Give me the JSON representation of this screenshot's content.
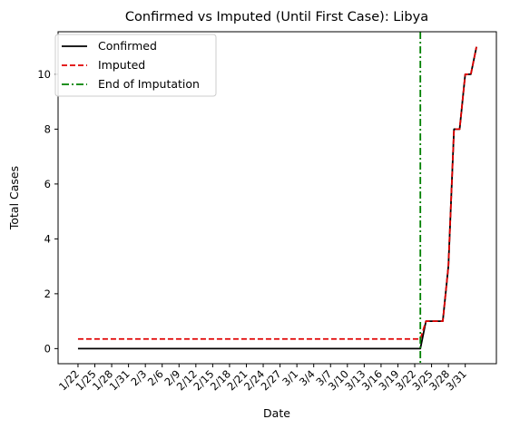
{
  "chart_data": {
    "type": "line",
    "title": "Confirmed vs Imputed (Until First Case): Libya",
    "xlabel": "Date",
    "ylabel": "Total Cases",
    "ylim": [
      -0.55,
      11.55
    ],
    "yticks": [
      0,
      2,
      4,
      6,
      8,
      10
    ],
    "xtick_labels": [
      "1/22",
      "1/25",
      "1/28",
      "1/31",
      "2/3",
      "2/6",
      "2/9",
      "2/12",
      "2/15",
      "2/18",
      "2/21",
      "2/24",
      "2/27",
      "3/1",
      "3/4",
      "3/7",
      "3/10",
      "3/13",
      "3/16",
      "3/19",
      "3/22",
      "3/25",
      "3/28",
      "3/31"
    ],
    "dates": [
      "1/22",
      "1/23",
      "1/24",
      "1/25",
      "1/26",
      "1/27",
      "1/28",
      "1/29",
      "1/30",
      "1/31",
      "2/1",
      "2/2",
      "2/3",
      "2/4",
      "2/5",
      "2/6",
      "2/7",
      "2/8",
      "2/9",
      "2/10",
      "2/11",
      "2/12",
      "2/13",
      "2/14",
      "2/15",
      "2/16",
      "2/17",
      "2/18",
      "2/19",
      "2/20",
      "2/21",
      "2/22",
      "2/23",
      "2/24",
      "2/25",
      "2/26",
      "2/27",
      "2/28",
      "2/29",
      "3/1",
      "3/2",
      "3/3",
      "3/4",
      "3/5",
      "3/6",
      "3/7",
      "3/8",
      "3/9",
      "3/10",
      "3/11",
      "3/12",
      "3/13",
      "3/14",
      "3/15",
      "3/16",
      "3/17",
      "3/18",
      "3/19",
      "3/20",
      "3/21",
      "3/22",
      "3/23",
      "3/24",
      "3/25",
      "3/26",
      "3/27",
      "3/28",
      "3/29",
      "3/30",
      "3/31",
      "4/1",
      "4/2"
    ],
    "series": [
      {
        "name": "Confirmed",
        "color": "#000000",
        "style": "solid",
        "values": [
          0,
          0,
          0,
          0,
          0,
          0,
          0,
          0,
          0,
          0,
          0,
          0,
          0,
          0,
          0,
          0,
          0,
          0,
          0,
          0,
          0,
          0,
          0,
          0,
          0,
          0,
          0,
          0,
          0,
          0,
          0,
          0,
          0,
          0,
          0,
          0,
          0,
          0,
          0,
          0,
          0,
          0,
          0,
          0,
          0,
          0,
          0,
          0,
          0,
          0,
          0,
          0,
          0,
          0,
          0,
          0,
          0,
          0,
          0,
          0,
          0,
          0,
          1,
          1,
          1,
          1,
          3,
          8,
          8,
          10,
          10,
          11
        ]
      },
      {
        "name": "Imputed",
        "color": "#e00000",
        "style": "dashed",
        "values": [
          0.35,
          0.35,
          0.35,
          0.35,
          0.35,
          0.35,
          0.35,
          0.35,
          0.35,
          0.35,
          0.35,
          0.35,
          0.35,
          0.35,
          0.35,
          0.35,
          0.35,
          0.35,
          0.35,
          0.35,
          0.35,
          0.35,
          0.35,
          0.35,
          0.35,
          0.35,
          0.35,
          0.35,
          0.35,
          0.35,
          0.35,
          0.35,
          0.35,
          0.35,
          0.35,
          0.35,
          0.35,
          0.35,
          0.35,
          0.35,
          0.35,
          0.35,
          0.35,
          0.35,
          0.35,
          0.35,
          0.35,
          0.35,
          0.35,
          0.35,
          0.35,
          0.35,
          0.35,
          0.35,
          0.35,
          0.35,
          0.35,
          0.35,
          0.35,
          0.35,
          0.35,
          0.35,
          1,
          1,
          1,
          1,
          3,
          8,
          8,
          10,
          10,
          11
        ]
      }
    ],
    "vline": {
      "name": "End of Imputation",
      "x": "3/23",
      "color": "#008000",
      "style": "dashdot"
    },
    "legend_position": "top-left",
    "grid": false
  }
}
